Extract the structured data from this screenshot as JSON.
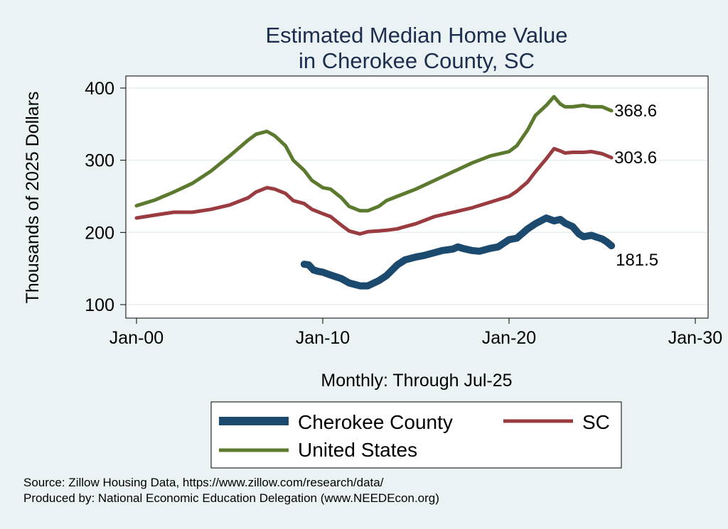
{
  "chart_data": {
    "type": "line",
    "title": [
      "Estimated Median Home Value",
      "in Cherokee County, SC"
    ],
    "ylabel": "Thousands of 2025 Dollars",
    "xlabel": "Monthly: Through Jul-25",
    "xlim": [
      "2000-01",
      "2030-01"
    ],
    "ylim": [
      100,
      400
    ],
    "x_ticks": [
      "Jan-00",
      "Jan-10",
      "Jan-20",
      "Jan-30"
    ],
    "y_ticks": [
      100,
      200,
      300,
      400
    ],
    "grid": true,
    "legend_position": "bottom",
    "series": [
      {
        "name": "Cherokee County",
        "color": "#1b4a6e",
        "end_label": "181.5",
        "points": [
          [
            "2009-01",
            156
          ],
          [
            "2009-04",
            155
          ],
          [
            "2009-07",
            148
          ],
          [
            "2009-10",
            146
          ],
          [
            "2010-01",
            145
          ],
          [
            "2010-06",
            141
          ],
          [
            "2011-01",
            136
          ],
          [
            "2011-06",
            130
          ],
          [
            "2012-01",
            126
          ],
          [
            "2012-06",
            126
          ],
          [
            "2013-01",
            133
          ],
          [
            "2013-06",
            140
          ],
          [
            "2014-01",
            155
          ],
          [
            "2014-06",
            162
          ],
          [
            "2015-01",
            166
          ],
          [
            "2015-06",
            168
          ],
          [
            "2016-01",
            172
          ],
          [
            "2016-06",
            175
          ],
          [
            "2017-01",
            177
          ],
          [
            "2017-04",
            180
          ],
          [
            "2017-07",
            178
          ],
          [
            "2018-01",
            175
          ],
          [
            "2018-06",
            174
          ],
          [
            "2019-01",
            178
          ],
          [
            "2019-06",
            180
          ],
          [
            "2020-01",
            190
          ],
          [
            "2020-06",
            192
          ],
          [
            "2021-01",
            205
          ],
          [
            "2021-06",
            212
          ],
          [
            "2022-01",
            220
          ],
          [
            "2022-06",
            216
          ],
          [
            "2022-10",
            218
          ],
          [
            "2023-01",
            213
          ],
          [
            "2023-06",
            208
          ],
          [
            "2023-10",
            198
          ],
          [
            "2024-01",
            194
          ],
          [
            "2024-06",
            196
          ],
          [
            "2024-10",
            193
          ],
          [
            "2025-01",
            191
          ],
          [
            "2025-04",
            187
          ],
          [
            "2025-07",
            181.5
          ]
        ]
      },
      {
        "name": "SC",
        "color": "#9a3b3f",
        "end_label": "303.6",
        "points": [
          [
            "2000-01",
            220
          ],
          [
            "2001-01",
            224
          ],
          [
            "2002-01",
            228
          ],
          [
            "2003-01",
            228
          ],
          [
            "2004-01",
            232
          ],
          [
            "2005-01",
            238
          ],
          [
            "2006-01",
            248
          ],
          [
            "2006-06",
            256
          ],
          [
            "2007-01",
            262
          ],
          [
            "2007-06",
            260
          ],
          [
            "2008-01",
            254
          ],
          [
            "2008-06",
            244
          ],
          [
            "2009-01",
            240
          ],
          [
            "2009-06",
            232
          ],
          [
            "2010-01",
            226
          ],
          [
            "2010-06",
            222
          ],
          [
            "2011-01",
            210
          ],
          [
            "2011-06",
            202
          ],
          [
            "2012-01",
            198
          ],
          [
            "2012-06",
            201
          ],
          [
            "2013-01",
            202
          ],
          [
            "2013-06",
            203
          ],
          [
            "2014-01",
            205
          ],
          [
            "2014-06",
            208
          ],
          [
            "2015-01",
            212
          ],
          [
            "2016-01",
            222
          ],
          [
            "2017-01",
            228
          ],
          [
            "2018-01",
            234
          ],
          [
            "2019-01",
            242
          ],
          [
            "2020-01",
            250
          ],
          [
            "2020-06",
            257
          ],
          [
            "2021-01",
            270
          ],
          [
            "2021-06",
            284
          ],
          [
            "2022-01",
            302
          ],
          [
            "2022-06",
            316
          ],
          [
            "2022-10",
            313
          ],
          [
            "2023-01",
            310
          ],
          [
            "2023-06",
            311
          ],
          [
            "2024-01",
            311
          ],
          [
            "2024-06",
            312
          ],
          [
            "2025-01",
            309
          ],
          [
            "2025-07",
            303.6
          ]
        ]
      },
      {
        "name": "United States",
        "color": "#5c7a2e",
        "end_label": "368.6",
        "points": [
          [
            "2000-01",
            237
          ],
          [
            "2001-01",
            245
          ],
          [
            "2002-01",
            256
          ],
          [
            "2003-01",
            268
          ],
          [
            "2004-01",
            285
          ],
          [
            "2005-01",
            306
          ],
          [
            "2006-01",
            328
          ],
          [
            "2006-06",
            336
          ],
          [
            "2007-01",
            340
          ],
          [
            "2007-06",
            334
          ],
          [
            "2008-01",
            320
          ],
          [
            "2008-06",
            300
          ],
          [
            "2009-01",
            286
          ],
          [
            "2009-06",
            272
          ],
          [
            "2010-01",
            262
          ],
          [
            "2010-06",
            260
          ],
          [
            "2011-01",
            248
          ],
          [
            "2011-06",
            236
          ],
          [
            "2012-01",
            230
          ],
          [
            "2012-06",
            230
          ],
          [
            "2013-01",
            236
          ],
          [
            "2013-06",
            244
          ],
          [
            "2014-01",
            250
          ],
          [
            "2015-01",
            260
          ],
          [
            "2016-01",
            272
          ],
          [
            "2017-01",
            284
          ],
          [
            "2018-01",
            296
          ],
          [
            "2019-01",
            306
          ],
          [
            "2020-01",
            312
          ],
          [
            "2020-06",
            320
          ],
          [
            "2021-01",
            342
          ],
          [
            "2021-06",
            362
          ],
          [
            "2022-01",
            376
          ],
          [
            "2022-06",
            388
          ],
          [
            "2022-10",
            378
          ],
          [
            "2023-01",
            374
          ],
          [
            "2023-06",
            374
          ],
          [
            "2024-01",
            376
          ],
          [
            "2024-06",
            374
          ],
          [
            "2025-01",
            374
          ],
          [
            "2025-07",
            368.6
          ]
        ]
      }
    ]
  },
  "footer": {
    "source": "Source: Zillow Housing Data, https://www.zillow.com/research/data/",
    "producer": "Produced by: National Economic Education Delegation (www.NEEDEcon.org)"
  }
}
